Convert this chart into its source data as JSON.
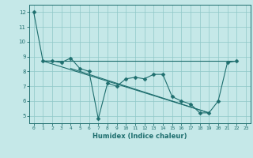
{
  "xlabel": "Humidex (Indice chaleur)",
  "bg_color": "#c5e8e8",
  "grid_color": "#8fc8c8",
  "line_color": "#1e6e6e",
  "xlim": [
    -0.5,
    23.5
  ],
  "ylim": [
    4.5,
    12.5
  ],
  "xticks": [
    0,
    1,
    2,
    3,
    4,
    5,
    6,
    7,
    8,
    9,
    10,
    11,
    12,
    13,
    14,
    15,
    16,
    17,
    18,
    19,
    20,
    21,
    22,
    23
  ],
  "yticks": [
    5,
    6,
    7,
    8,
    9,
    10,
    11,
    12
  ],
  "series": [
    {
      "x": [
        0,
        1,
        2,
        3,
        4,
        5,
        6,
        7,
        8,
        9,
        10,
        11,
        12,
        13,
        14,
        15,
        16,
        17,
        18,
        19,
        20,
        21,
        22
      ],
      "y": [
        12.0,
        8.7,
        8.7,
        8.6,
        8.9,
        8.2,
        8.0,
        4.8,
        7.2,
        7.0,
        7.5,
        7.6,
        7.5,
        7.8,
        7.8,
        6.3,
        6.0,
        5.8,
        5.2,
        5.2,
        6.0,
        8.6,
        8.7
      ],
      "marker": "D",
      "ms": 2.5
    },
    {
      "x": [
        1,
        22
      ],
      "y": [
        8.7,
        8.7
      ],
      "marker": null,
      "ms": 0
    },
    {
      "x": [
        1,
        19
      ],
      "y": [
        8.7,
        5.2
      ],
      "marker": null,
      "ms": 0
    },
    {
      "x": [
        4,
        19
      ],
      "y": [
        8.2,
        5.2
      ],
      "marker": null,
      "ms": 0
    }
  ]
}
